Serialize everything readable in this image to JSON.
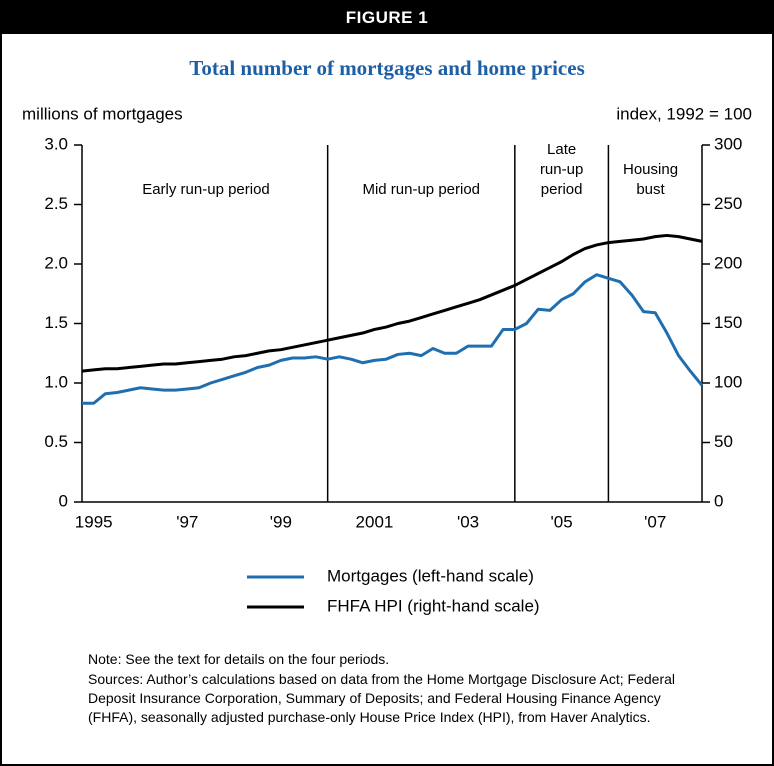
{
  "header": "FIGURE 1",
  "chart_data": {
    "type": "line",
    "title": "Total number of mortgages and home prices",
    "y_label": "millions of mortgages",
    "y2_label": "index, 1992 = 100",
    "x": [
      1994.75,
      1995,
      1995.25,
      1995.5,
      1995.75,
      1996,
      1996.25,
      1996.5,
      1996.75,
      1997,
      1997.25,
      1997.5,
      1997.75,
      1998,
      1998.25,
      1998.5,
      1998.75,
      1999,
      1999.25,
      1999.5,
      1999.75,
      2000,
      2000.25,
      2000.5,
      2000.75,
      2001,
      2001.25,
      2001.5,
      2001.75,
      2002,
      2002.25,
      2002.5,
      2002.75,
      2003,
      2003.25,
      2003.5,
      2003.75,
      2004,
      2004.25,
      2004.5,
      2004.75,
      2005,
      2005.25,
      2005.5,
      2005.75,
      2006,
      2006.25,
      2006.5,
      2006.75,
      2007,
      2007.25,
      2007.5,
      2007.75,
      2008
    ],
    "series": [
      {
        "name": "Mortgages (left-hand scale)",
        "color": "#1f6fb0",
        "values": [
          0.83,
          0.83,
          0.91,
          0.92,
          0.94,
          0.96,
          0.95,
          0.94,
          0.94,
          0.95,
          0.96,
          1.0,
          1.03,
          1.06,
          1.09,
          1.13,
          1.15,
          1.19,
          1.21,
          1.21,
          1.22,
          1.2,
          1.22,
          1.2,
          1.17,
          1.19,
          1.2,
          1.24,
          1.25,
          1.23,
          1.29,
          1.25,
          1.25,
          1.31,
          1.31,
          1.31,
          1.45,
          1.45,
          1.5,
          1.62,
          1.61,
          1.7,
          1.75,
          1.85,
          1.91,
          1.88,
          1.85,
          1.74,
          1.6,
          1.59,
          1.42,
          1.23,
          1.1,
          0.98
        ]
      },
      {
        "name": "FHFA HPI (right-hand scale)",
        "color": "#000000",
        "axis": "y2",
        "values": [
          110,
          111,
          112,
          112,
          113,
          114,
          115,
          116,
          116,
          117,
          118,
          119,
          120,
          122,
          123,
          125,
          127,
          128,
          130,
          132,
          134,
          136,
          138,
          140,
          142,
          145,
          147,
          150,
          152,
          155,
          158,
          161,
          164,
          167,
          170,
          174,
          178,
          182,
          187,
          192,
          197,
          202,
          208,
          213,
          216,
          218,
          219,
          220,
          221,
          223,
          224,
          223,
          221,
          219
        ]
      }
    ],
    "xlim": [
      1994.75,
      2008
    ],
    "xticks": [
      {
        "value": 1995,
        "label": "1995"
      },
      {
        "value": 1997,
        "label": "'97"
      },
      {
        "value": 1999,
        "label": "'99"
      },
      {
        "value": 2001,
        "label": "2001"
      },
      {
        "value": 2003,
        "label": "'03"
      },
      {
        "value": 2005,
        "label": "'05"
      },
      {
        "value": 2007,
        "label": "'07"
      }
    ],
    "ylim": [
      0,
      3
    ],
    "yticks": [
      0,
      0.5,
      {
        "value": 1,
        "label": "1.0"
      },
      1.5,
      {
        "value": 2,
        "label": "2.0"
      },
      2.5,
      {
        "value": 3,
        "label": "3.0"
      }
    ],
    "y2lim": [
      0,
      300
    ],
    "y2ticks": [
      0,
      50,
      100,
      150,
      200,
      250,
      300
    ],
    "periods": [
      {
        "lines": [
          "Early run-up period"
        ],
        "center": 1997.4
      },
      {
        "lines": [
          "Mid run-up period"
        ],
        "center": 2002.0,
        "start": 2000
      },
      {
        "lines": [
          "Late",
          "run-up",
          "period"
        ],
        "center": 2005.0,
        "start": 2004
      },
      {
        "lines": [
          "Housing",
          "bust"
        ],
        "center": 2006.9,
        "start": 2006
      }
    ],
    "legend": "bottom"
  },
  "notes": [
    "Note: See the text for details on the four periods.",
    "Sources: Author’s calculations based on data from the Home Mortgage Disclosure Act; Federal Deposit Insurance Corporation, Summary of Deposits; and Federal Housing Finance Agency (FHFA), seasonally adjusted purchase-only House Price Index (HPI), from Haver Analytics."
  ]
}
